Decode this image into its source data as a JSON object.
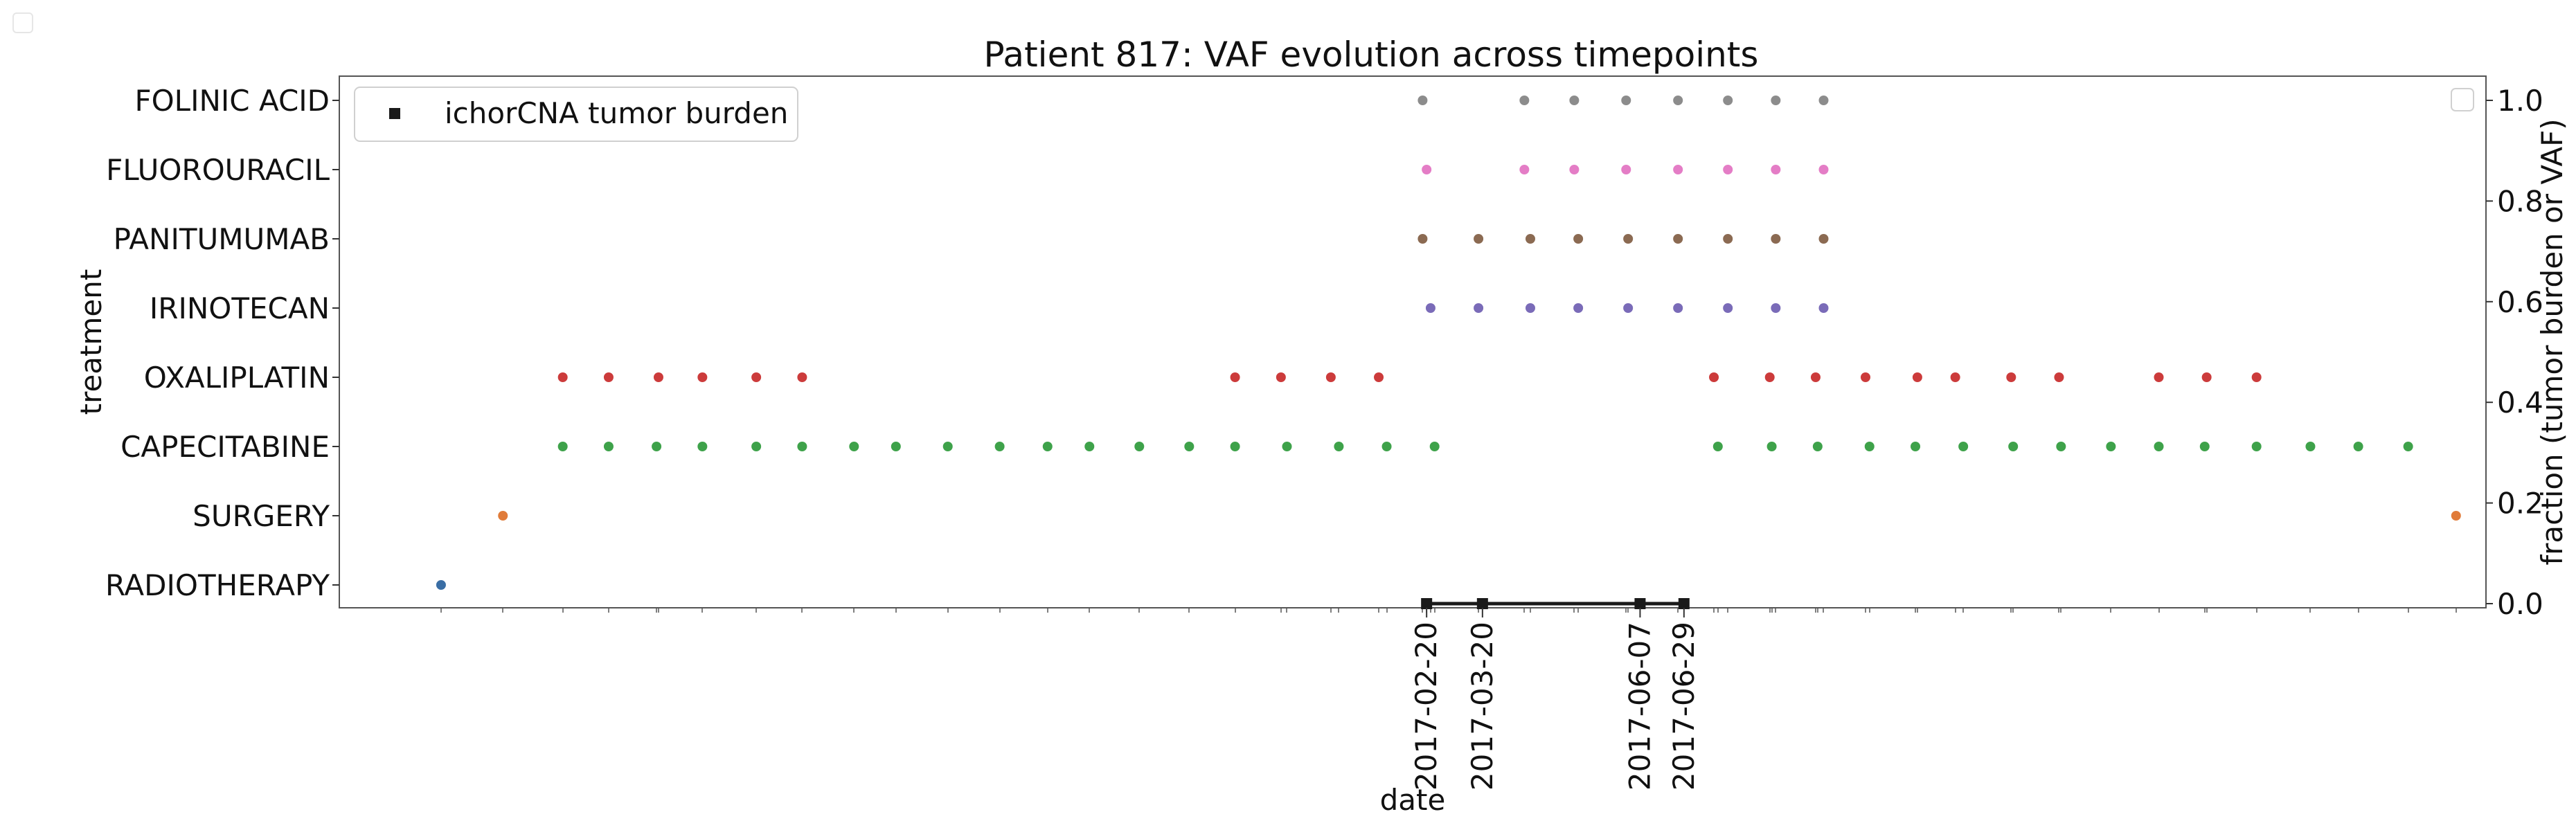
{
  "chart_data": {
    "type": "scatter",
    "title": "Patient 817: VAF evolution across timepoints",
    "xlabel": "date",
    "ylabel_left": "treatment",
    "ylabel_right": "fraction (tumor burden or VAF)",
    "treatments": [
      "RADIOTHERAPY",
      "SURGERY",
      "CAPECITABINE",
      "OXALIPLATIN",
      "IRINOTECAN",
      "PANITUMUMAB",
      "FLUOROURACIL",
      "FOLINIC ACID"
    ],
    "xlim": [
      "2015-08-25",
      "2018-08-05"
    ],
    "right_ylim": [
      0,
      1
    ],
    "right_yticks": [
      "0.0",
      "0.2",
      "0.4",
      "0.6",
      "0.8",
      "1.0"
    ],
    "x_tick_labels": [
      "2017-02-20",
      "2017-03-20",
      "2017-06-07",
      "2017-06-29"
    ],
    "grid": false,
    "legend": {
      "placement": "top-left",
      "entries": [
        "ichorCNA tumor burden"
      ]
    },
    "treatment_events": [
      {
        "treatment": "RADIOTHERAPY",
        "color": "#3a6ea5",
        "dates": [
          "2015-10-15"
        ]
      },
      {
        "treatment": "SURGERY",
        "color": "#e07b39",
        "dates": [
          "2015-11-15",
          "2018-07-21"
        ]
      },
      {
        "treatment": "CAPECITABINE",
        "color": "#3ea24a",
        "dates": [
          "2015-12-15",
          "2016-01-07",
          "2016-01-31",
          "2016-02-23",
          "2016-03-21",
          "2016-04-13",
          "2016-05-09",
          "2016-05-30",
          "2016-06-25",
          "2016-07-21",
          "2016-08-14",
          "2016-09-04",
          "2016-09-29",
          "2016-10-24",
          "2016-11-16",
          "2016-12-12",
          "2017-01-07",
          "2017-01-31",
          "2017-02-24",
          "2017-07-16",
          "2017-08-12",
          "2017-09-04",
          "2017-09-30",
          "2017-10-23",
          "2017-11-16",
          "2017-12-11",
          "2018-01-04",
          "2018-01-29",
          "2018-02-22",
          "2018-03-17",
          "2018-04-12",
          "2018-05-09",
          "2018-06-02",
          "2018-06-27"
        ]
      },
      {
        "treatment": "OXALIPLATIN",
        "color": "#cc3b3b",
        "dates": [
          "2015-12-15",
          "2016-01-07",
          "2016-02-01",
          "2016-02-23",
          "2016-03-21",
          "2016-04-13",
          "2016-11-16",
          "2016-12-09",
          "2017-01-03",
          "2017-01-27",
          "2017-07-14",
          "2017-08-11",
          "2017-09-03",
          "2017-09-28",
          "2017-10-24",
          "2017-11-12",
          "2017-12-10",
          "2018-01-03",
          "2018-02-22",
          "2018-03-18",
          "2018-04-12"
        ]
      },
      {
        "treatment": "IRINOTECAN",
        "color": "#7a6bb8",
        "dates": [
          "2017-02-22",
          "2017-03-18",
          "2017-04-13",
          "2017-05-07",
          "2017-06-01",
          "2017-06-26",
          "2017-07-21",
          "2017-08-14",
          "2017-09-07"
        ]
      },
      {
        "treatment": "PANITUMUMAB",
        "color": "#8b6a52",
        "dates": [
          "2017-02-18",
          "2017-03-18",
          "2017-04-13",
          "2017-05-07",
          "2017-06-01",
          "2017-06-26",
          "2017-07-21",
          "2017-08-14",
          "2017-09-07"
        ]
      },
      {
        "treatment": "FLUOROURACIL",
        "color": "#e47dc6",
        "dates": [
          "2017-02-20",
          "2017-04-10",
          "2017-05-05",
          "2017-05-31",
          "2017-06-26",
          "2017-07-21",
          "2017-08-14",
          "2017-09-07"
        ]
      },
      {
        "treatment": "FOLINIC ACID",
        "color": "#8c8c8c",
        "dates": [
          "2017-02-18",
          "2017-04-10",
          "2017-05-05",
          "2017-05-31",
          "2017-06-26",
          "2017-07-21",
          "2017-08-14",
          "2017-09-07"
        ]
      }
    ],
    "tumor_burden": {
      "name": "ichorCNA tumor burden",
      "color": "#1a1a1a",
      "points": [
        {
          "date": "2017-02-20",
          "value": 0.0
        },
        {
          "date": "2017-03-20",
          "value": 0.0
        },
        {
          "date": "2017-06-07",
          "value": 0.0
        },
        {
          "date": "2017-06-29",
          "value": 0.0
        }
      ]
    }
  }
}
